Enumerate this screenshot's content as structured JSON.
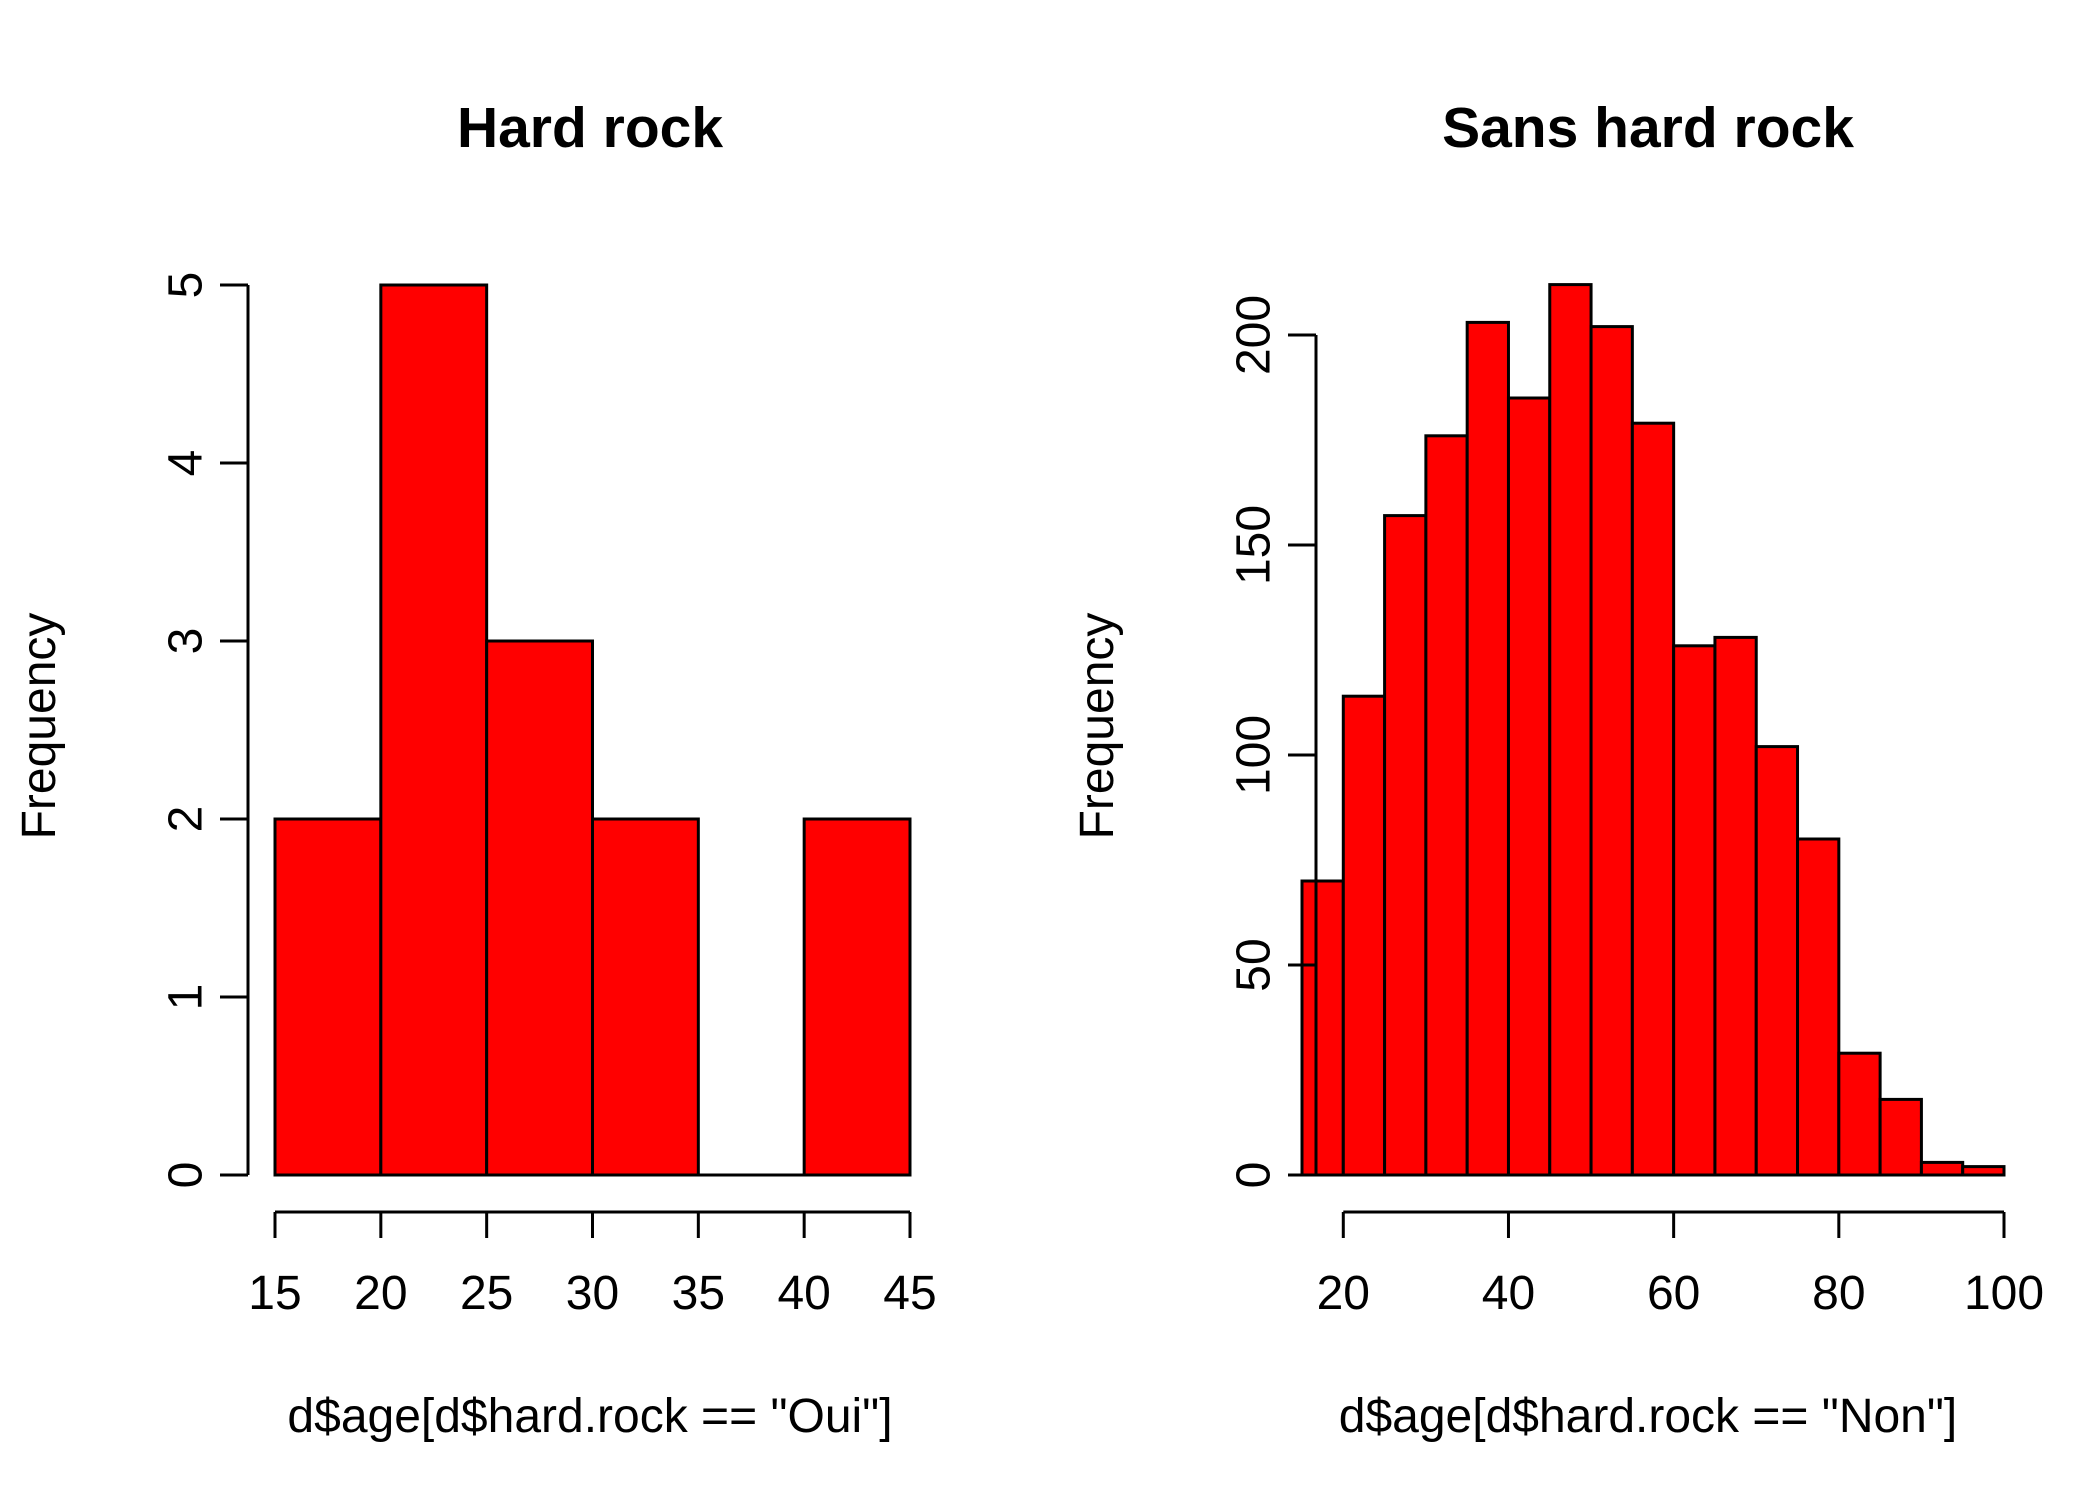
{
  "chart_data": [
    {
      "type": "bar",
      "subtype": "histogram",
      "title": "Hard rock",
      "xlabel": "d$age[d$hard.rock == \"Oui\"]",
      "ylabel": "Frequency",
      "bins": [
        {
          "from": 15,
          "to": 20,
          "count": 2
        },
        {
          "from": 20,
          "to": 25,
          "count": 5
        },
        {
          "from": 25,
          "to": 30,
          "count": 3
        },
        {
          "from": 30,
          "to": 35,
          "count": 2
        },
        {
          "from": 35,
          "to": 40,
          "count": 0
        },
        {
          "from": 40,
          "to": 45,
          "count": 2
        }
      ],
      "xlim": [
        15,
        45
      ],
      "ylim": [
        0,
        5
      ],
      "xticks": [
        15,
        20,
        25,
        30,
        35,
        40,
        45
      ],
      "yticks": [
        0,
        1,
        2,
        3,
        4,
        5
      ],
      "bar_color": "#ff0000",
      "grid": false
    },
    {
      "type": "bar",
      "subtype": "histogram",
      "title": "Sans hard rock",
      "xlabel": "d$age[d$hard.rock == \"Non\"]",
      "ylabel": "Frequency",
      "bins": [
        {
          "from": 15,
          "to": 20,
          "count": 70
        },
        {
          "from": 20,
          "to": 25,
          "count": 114
        },
        {
          "from": 25,
          "to": 30,
          "count": 157
        },
        {
          "from": 30,
          "to": 35,
          "count": 176
        },
        {
          "from": 35,
          "to": 40,
          "count": 203
        },
        {
          "from": 40,
          "to": 45,
          "count": 185
        },
        {
          "from": 45,
          "to": 50,
          "count": 212
        },
        {
          "from": 50,
          "to": 55,
          "count": 202
        },
        {
          "from": 55,
          "to": 60,
          "count": 179
        },
        {
          "from": 60,
          "to": 65,
          "count": 126
        },
        {
          "from": 65,
          "to": 70,
          "count": 128
        },
        {
          "from": 70,
          "to": 75,
          "count": 102
        },
        {
          "from": 75,
          "to": 80,
          "count": 80
        },
        {
          "from": 80,
          "to": 85,
          "count": 29
        },
        {
          "from": 85,
          "to": 90,
          "count": 18
        },
        {
          "from": 90,
          "to": 95,
          "count": 3
        },
        {
          "from": 95,
          "to": 100,
          "count": 2
        }
      ],
      "xlim": [
        15,
        100
      ],
      "ylim": [
        0,
        200
      ],
      "xticks": [
        20,
        40,
        60,
        80,
        100
      ],
      "yticks": [
        0,
        50,
        100,
        150,
        200
      ],
      "bar_color": "#ff0000",
      "grid": false
    }
  ]
}
